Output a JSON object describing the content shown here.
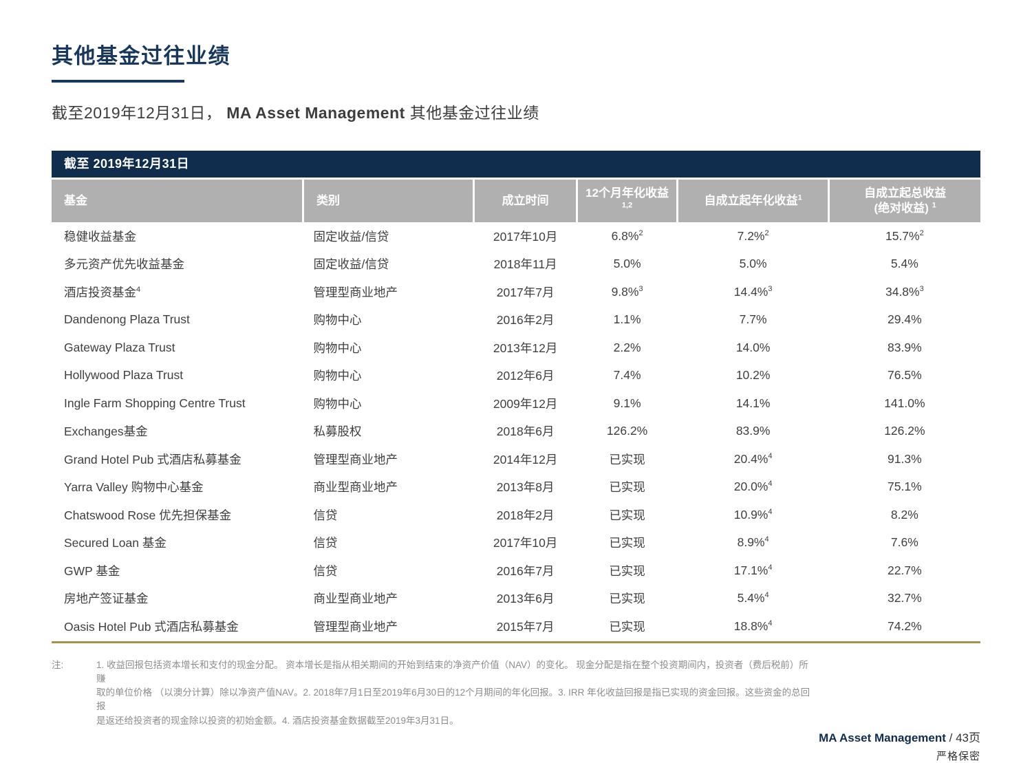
{
  "page": {
    "title": "其他基金过往业绩",
    "subtitle_prefix": "截至2019年12月31日， ",
    "subtitle_brand": "MA Asset Management",
    "subtitle_suffix": " 其他基金过往业绩"
  },
  "colors": {
    "navy_banner": "#102D4D",
    "title_navy": "#17375C",
    "header_gray": "#B0B0B0",
    "gold_rule": "#AB9148",
    "body_text": "#3F3F3F",
    "note_gray": "#8C8C8C"
  },
  "table": {
    "banner": "截至 2019年12月31日",
    "columns": [
      {
        "label": "基金",
        "sup": ""
      },
      {
        "label": "类别",
        "sup": ""
      },
      {
        "label": "成立时间",
        "sup": ""
      },
      {
        "label": "12个月年化收益",
        "sup": "1,2"
      },
      {
        "label": "自成立起年化收益",
        "sup": "1"
      },
      {
        "label": "自成立起总收益",
        "label2": "(绝对收益)",
        "sup": "1"
      }
    ],
    "rows": [
      {
        "fund": "稳健收益基金",
        "fund_sup": "",
        "category": "固定收益/信贷",
        "inception": "2017年10月",
        "ret12": "6.8%",
        "ret12_sup": "2",
        "ann": "7.2%",
        "ann_sup": "2",
        "total": "15.7%",
        "total_sup": "2"
      },
      {
        "fund": "多元资产优先收益基金",
        "fund_sup": "",
        "category": "固定收益/信贷",
        "inception": "2018年11月",
        "ret12": "5.0%",
        "ret12_sup": "",
        "ann": "5.0%",
        "ann_sup": "",
        "total": "5.4%",
        "total_sup": ""
      },
      {
        "fund": "酒店投资基金",
        "fund_sup": "4",
        "category": "管理型商业地产",
        "inception": "2017年7月",
        "ret12": "9.8%",
        "ret12_sup": "3",
        "ann": "14.4%",
        "ann_sup": "3",
        "total": "34.8%",
        "total_sup": "3"
      },
      {
        "fund": "Dandenong Plaza Trust",
        "fund_sup": "",
        "category": "购物中心",
        "inception": "2016年2月",
        "ret12": "1.1%",
        "ret12_sup": "",
        "ann": "7.7%",
        "ann_sup": "",
        "total": "29.4%",
        "total_sup": ""
      },
      {
        "fund": "Gateway Plaza Trust",
        "fund_sup": "",
        "category": "购物中心",
        "inception": "2013年12月",
        "ret12": "2.2%",
        "ret12_sup": "",
        "ann": "14.0%",
        "ann_sup": "",
        "total": "83.9%",
        "total_sup": ""
      },
      {
        "fund": "Hollywood Plaza Trust",
        "fund_sup": "",
        "category": "购物中心",
        "inception": "2012年6月",
        "ret12": "7.4%",
        "ret12_sup": "",
        "ann": "10.2%",
        "ann_sup": "",
        "total": "76.5%",
        "total_sup": ""
      },
      {
        "fund": "Ingle Farm Shopping Centre Trust",
        "fund_sup": "",
        "category": "购物中心",
        "inception": "2009年12月",
        "ret12": "9.1%",
        "ret12_sup": "",
        "ann": "14.1%",
        "ann_sup": "",
        "total": "141.0%",
        "total_sup": ""
      },
      {
        "fund": "Exchanges基金",
        "fund_sup": "",
        "category": "私募股权",
        "inception": "2018年6月",
        "ret12": "126.2%",
        "ret12_sup": "",
        "ann": "83.9%",
        "ann_sup": "",
        "total": "126.2%",
        "total_sup": ""
      },
      {
        "fund": "Grand Hotel Pub 式酒店私募基金",
        "fund_sup": "",
        "category": "管理型商业地产",
        "inception": "2014年12月",
        "ret12": "已实现",
        "ret12_sup": "",
        "ann": "20.4%",
        "ann_sup": "4",
        "total": "91.3%",
        "total_sup": ""
      },
      {
        "fund": "Yarra Valley 购物中心基金",
        "fund_sup": "",
        "category": "商业型商业地产",
        "inception": "2013年8月",
        "ret12": "已实现",
        "ret12_sup": "",
        "ann": "20.0%",
        "ann_sup": "4",
        "total": "75.1%",
        "total_sup": ""
      },
      {
        "fund": "Chatswood Rose 优先担保基金",
        "fund_sup": "",
        "category": "信贷",
        "inception": "2018年2月",
        "ret12": "已实现",
        "ret12_sup": "",
        "ann": "10.9%",
        "ann_sup": "4",
        "total": "8.2%",
        "total_sup": ""
      },
      {
        "fund": "Secured Loan 基金",
        "fund_sup": "",
        "category": "信贷",
        "inception": "2017年10月",
        "ret12": "已实现",
        "ret12_sup": "",
        "ann": "8.9%",
        "ann_sup": "4",
        "total": "7.6%",
        "total_sup": ""
      },
      {
        "fund": "GWP 基金",
        "fund_sup": "",
        "category": "信贷",
        "inception": "2016年7月",
        "ret12": "已实现",
        "ret12_sup": "",
        "ann": "17.1%",
        "ann_sup": "4",
        "total": "22.7%",
        "total_sup": ""
      },
      {
        "fund": "房地产签证基金",
        "fund_sup": "",
        "category": "商业型商业地产",
        "inception": "2013年6月",
        "ret12": "已实现",
        "ret12_sup": "",
        "ann": "5.4%",
        "ann_sup": "4",
        "total": "32.7%",
        "total_sup": ""
      },
      {
        "fund": "Oasis Hotel Pub 式酒店私募基金",
        "fund_sup": "",
        "category": "管理型商业地产",
        "inception": "2015年7月",
        "ret12": "已实现",
        "ret12_sup": "",
        "ann": "18.8%",
        "ann_sup": "4",
        "total": "74.2%",
        "total_sup": ""
      }
    ]
  },
  "notes": {
    "label": "注:",
    "lines": [
      "1. 收益回报包括资本增长和支付的现金分配。 资本增长是指从相关期间的开始到结束的净资产价值（NAV）的变化。 现金分配是指在整个投资期间内，投资者（费后税前）所赚",
      "取的单位价格 （以澳分计算）除以净资产值NAV。2. 2018年7月1日至2019年6月30日的12个月期间的年化回报。3. IRR 年化收益回报是指已实现的资金回报。这些资金的总回报",
      "是返还给投资者的现金除以投资的初始金额。4. 酒店投资基金数据截至2019年3月31日。"
    ]
  },
  "footer": {
    "brand": "MA Asset Management",
    "page": " / 43页",
    "confidential": "严格保密"
  }
}
